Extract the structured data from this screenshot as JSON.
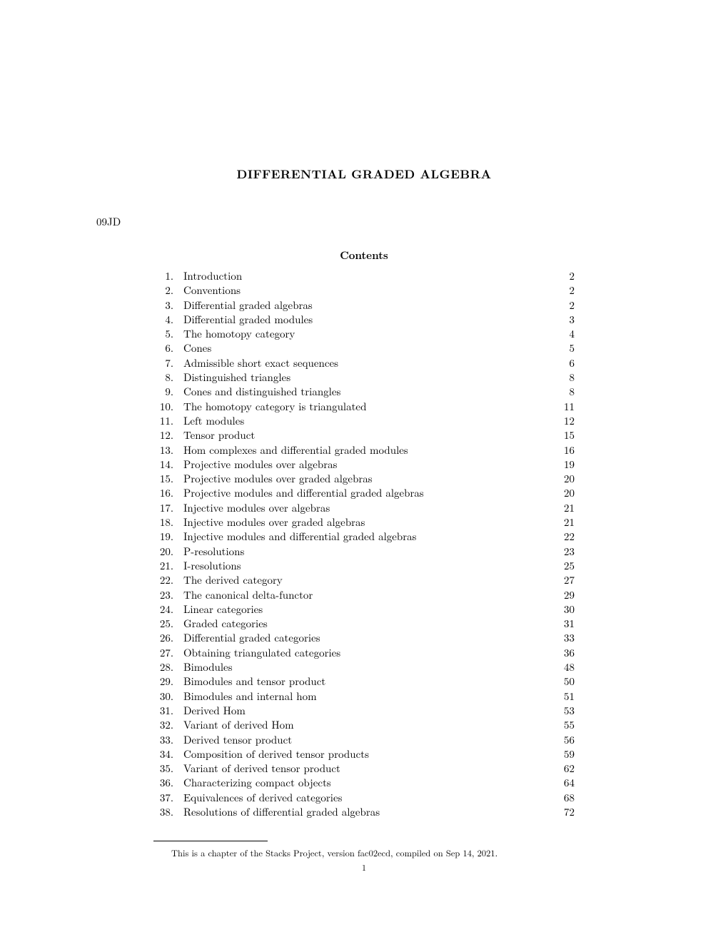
{
  "title": "DIFFERENTIAL GRADED ALGEBRA",
  "tag": "09JD",
  "contents_heading": "Contents",
  "toc": [
    {
      "num": "1.",
      "title": "Introduction",
      "page": "2"
    },
    {
      "num": "2.",
      "title": "Conventions",
      "page": "2"
    },
    {
      "num": "3.",
      "title": "Differential graded algebras",
      "page": "2"
    },
    {
      "num": "4.",
      "title": "Differential graded modules",
      "page": "3"
    },
    {
      "num": "5.",
      "title": "The homotopy category",
      "page": "4"
    },
    {
      "num": "6.",
      "title": "Cones",
      "page": "5"
    },
    {
      "num": "7.",
      "title": "Admissible short exact sequences",
      "page": "6"
    },
    {
      "num": "8.",
      "title": "Distinguished triangles",
      "page": "8"
    },
    {
      "num": "9.",
      "title": "Cones and distinguished triangles",
      "page": "8"
    },
    {
      "num": "10.",
      "title": "The homotopy category is triangulated",
      "page": "11"
    },
    {
      "num": "11.",
      "title": "Left modules",
      "page": "12"
    },
    {
      "num": "12.",
      "title": "Tensor product",
      "page": "15"
    },
    {
      "num": "13.",
      "title": "Hom complexes and differential graded modules",
      "page": "16"
    },
    {
      "num": "14.",
      "title": "Projective modules over algebras",
      "page": "19"
    },
    {
      "num": "15.",
      "title": "Projective modules over graded algebras",
      "page": "20"
    },
    {
      "num": "16.",
      "title": "Projective modules and differential graded algebras",
      "page": "20"
    },
    {
      "num": "17.",
      "title": "Injective modules over algebras",
      "page": "21"
    },
    {
      "num": "18.",
      "title": "Injective modules over graded algebras",
      "page": "21"
    },
    {
      "num": "19.",
      "title": "Injective modules and differential graded algebras",
      "page": "22"
    },
    {
      "num": "20.",
      "title": "P-resolutions",
      "page": "23"
    },
    {
      "num": "21.",
      "title": "I-resolutions",
      "page": "25"
    },
    {
      "num": "22.",
      "title": "The derived category",
      "page": "27"
    },
    {
      "num": "23.",
      "title": "The canonical delta-functor",
      "page": "29"
    },
    {
      "num": "24.",
      "title": "Linear categories",
      "page": "30"
    },
    {
      "num": "25.",
      "title": "Graded categories",
      "page": "31"
    },
    {
      "num": "26.",
      "title": "Differential graded categories",
      "page": "33"
    },
    {
      "num": "27.",
      "title": "Obtaining triangulated categories",
      "page": "36"
    },
    {
      "num": "28.",
      "title": "Bimodules",
      "page": "48"
    },
    {
      "num": "29.",
      "title": "Bimodules and tensor product",
      "page": "50"
    },
    {
      "num": "30.",
      "title": "Bimodules and internal hom",
      "page": "51"
    },
    {
      "num": "31.",
      "title": "Derived Hom",
      "page": "53"
    },
    {
      "num": "32.",
      "title": "Variant of derived Hom",
      "page": "55"
    },
    {
      "num": "33.",
      "title": "Derived tensor product",
      "page": "56"
    },
    {
      "num": "34.",
      "title": "Composition of derived tensor products",
      "page": "59"
    },
    {
      "num": "35.",
      "title": "Variant of derived tensor product",
      "page": "62"
    },
    {
      "num": "36.",
      "title": "Characterizing compact objects",
      "page": "64"
    },
    {
      "num": "37.",
      "title": "Equivalences of derived categories",
      "page": "68"
    },
    {
      "num": "38.",
      "title": "Resolutions of differential graded algebras",
      "page": "72"
    }
  ],
  "footnote": "This is a chapter of the Stacks Project, version fac02ecd, compiled on Sep 14, 2021.",
  "page_number": "1",
  "colors": {
    "text": "#000000",
    "background": "#ffffff"
  },
  "typography": {
    "title_fontsize": 17,
    "body_fontsize": 15,
    "footnote_fontsize": 12.5,
    "pagenum_fontsize": 12,
    "line_height": 20.3
  }
}
